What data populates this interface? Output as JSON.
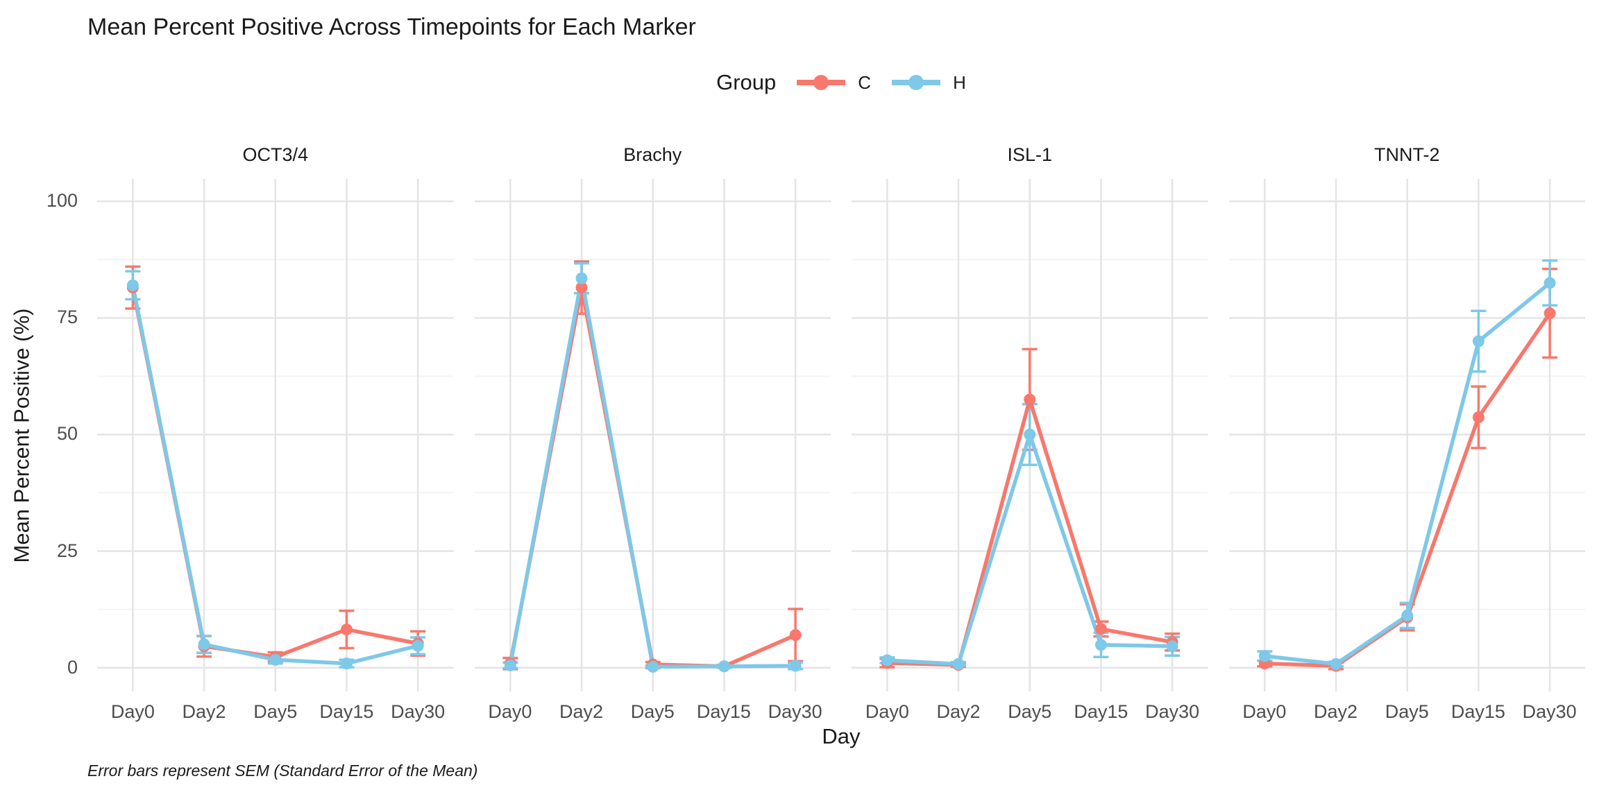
{
  "title": "Mean Percent Positive Across Timepoints for Each Marker",
  "caption": "Error bars represent SEM (Standard Error of the Mean)",
  "legend": {
    "title": "Group",
    "items": [
      {
        "label": "C",
        "color": "#F8786D"
      },
      {
        "label": "H",
        "color": "#7EC8E8"
      }
    ]
  },
  "axes": {
    "x_title": "Day",
    "y_title": "Mean Percent Positive (%)",
    "y_ticks": [
      0,
      25,
      50,
      75,
      100
    ],
    "x_ticks": [
      "Day0",
      "Day2",
      "Day5",
      "Day15",
      "Day30"
    ]
  },
  "colors": {
    "grid_major": "#E4E4E4",
    "grid_minor": "#F3F3F3",
    "text_dark": "#1A1A1A",
    "text_gray": "#4D4D4D"
  },
  "chart_data": {
    "type": "line",
    "title": "Mean Percent Positive Across Timepoints for Each Marker",
    "xlabel": "Day",
    "ylabel": "Mean Percent Positive (%)",
    "x_categories": [
      "Day0",
      "Day2",
      "Day5",
      "Day15",
      "Day30"
    ],
    "ylim": [
      0,
      100
    ],
    "y_major_gridlines": [
      0,
      25,
      50,
      75,
      100
    ],
    "y_minor_gridlines": [
      12.5,
      37.5,
      62.5,
      87.5
    ],
    "grid": "horizontal major+minor, vertical at categories",
    "legend_position": "top-center",
    "error_bars": "SEM",
    "groups": [
      {
        "name": "C",
        "color": "#F8786D"
      },
      {
        "name": "H",
        "color": "#7EC8E8"
      }
    ],
    "facets": [
      {
        "marker": "OCT3/4",
        "series": [
          {
            "group": "C",
            "values": [
              81.5,
              4.6,
              2.3,
              8.2,
              5.2
            ],
            "sem": [
              4.5,
              2.2,
              1.0,
              4.0,
              2.6
            ]
          },
          {
            "group": "H",
            "values": [
              82.0,
              5.0,
              1.7,
              0.9,
              4.7
            ],
            "sem": [
              3.0,
              1.8,
              0.8,
              0.8,
              1.8
            ]
          }
        ]
      },
      {
        "marker": "Brachy",
        "series": [
          {
            "group": "C",
            "values": [
              0.9,
              81.5,
              0.7,
              0.3,
              7.0
            ],
            "sem": [
              1.2,
              5.6,
              0.5,
              0.3,
              5.6
            ]
          },
          {
            "group": "H",
            "values": [
              0.5,
              83.5,
              0.2,
              0.3,
              0.4
            ],
            "sem": [
              0.6,
              3.2,
              0.3,
              0.3,
              0.7
            ]
          }
        ]
      },
      {
        "marker": "ISL-1",
        "series": [
          {
            "group": "C",
            "values": [
              1.0,
              0.6,
              57.5,
              8.3,
              5.5
            ],
            "sem": [
              0.9,
              0.4,
              10.8,
              1.6,
              1.8
            ]
          },
          {
            "group": "H",
            "values": [
              1.6,
              0.8,
              50.0,
              4.9,
              4.6
            ],
            "sem": [
              0.6,
              0.4,
              6.5,
              2.6,
              2.0
            ]
          }
        ]
      },
      {
        "marker": "TNNT-2",
        "series": [
          {
            "group": "C",
            "values": [
              0.9,
              0.4,
              10.8,
              53.7,
              76.0
            ],
            "sem": [
              0.6,
              0.7,
              2.8,
              6.6,
              9.5
            ]
          },
          {
            "group": "H",
            "values": [
              2.5,
              0.8,
              11.2,
              70.0,
              82.5
            ],
            "sem": [
              1.0,
              0.5,
              2.7,
              6.5,
              4.8
            ]
          }
        ]
      }
    ]
  }
}
